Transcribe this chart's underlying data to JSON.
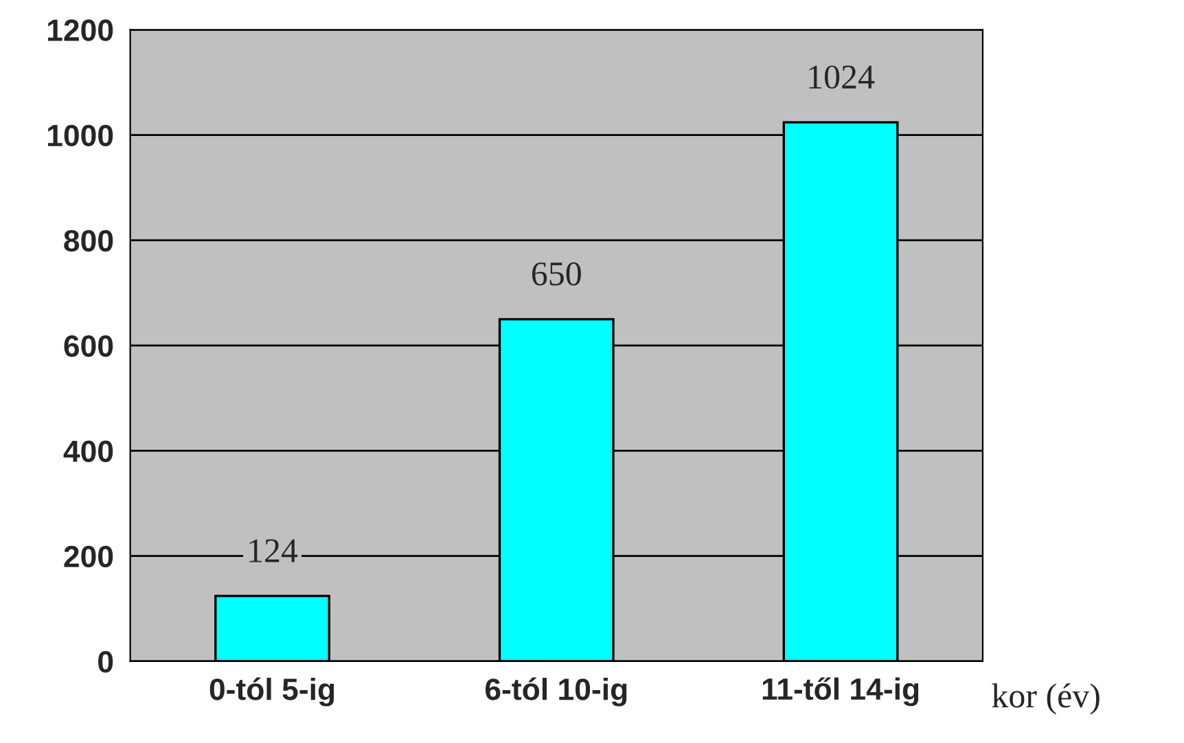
{
  "chart_data": {
    "type": "bar",
    "xlabel": "kor (év)",
    "categories": [
      "0-tól 5-ig",
      "6-tól 10-ig",
      "11-től 14-ig"
    ],
    "values": [
      124,
      650,
      1024
    ],
    "color": "#00ffff",
    "ylim": [
      0,
      1200
    ],
    "yticks": [
      0,
      200,
      400,
      600,
      800,
      1000,
      1200
    ],
    "grid": "y",
    "data_labels": true
  }
}
